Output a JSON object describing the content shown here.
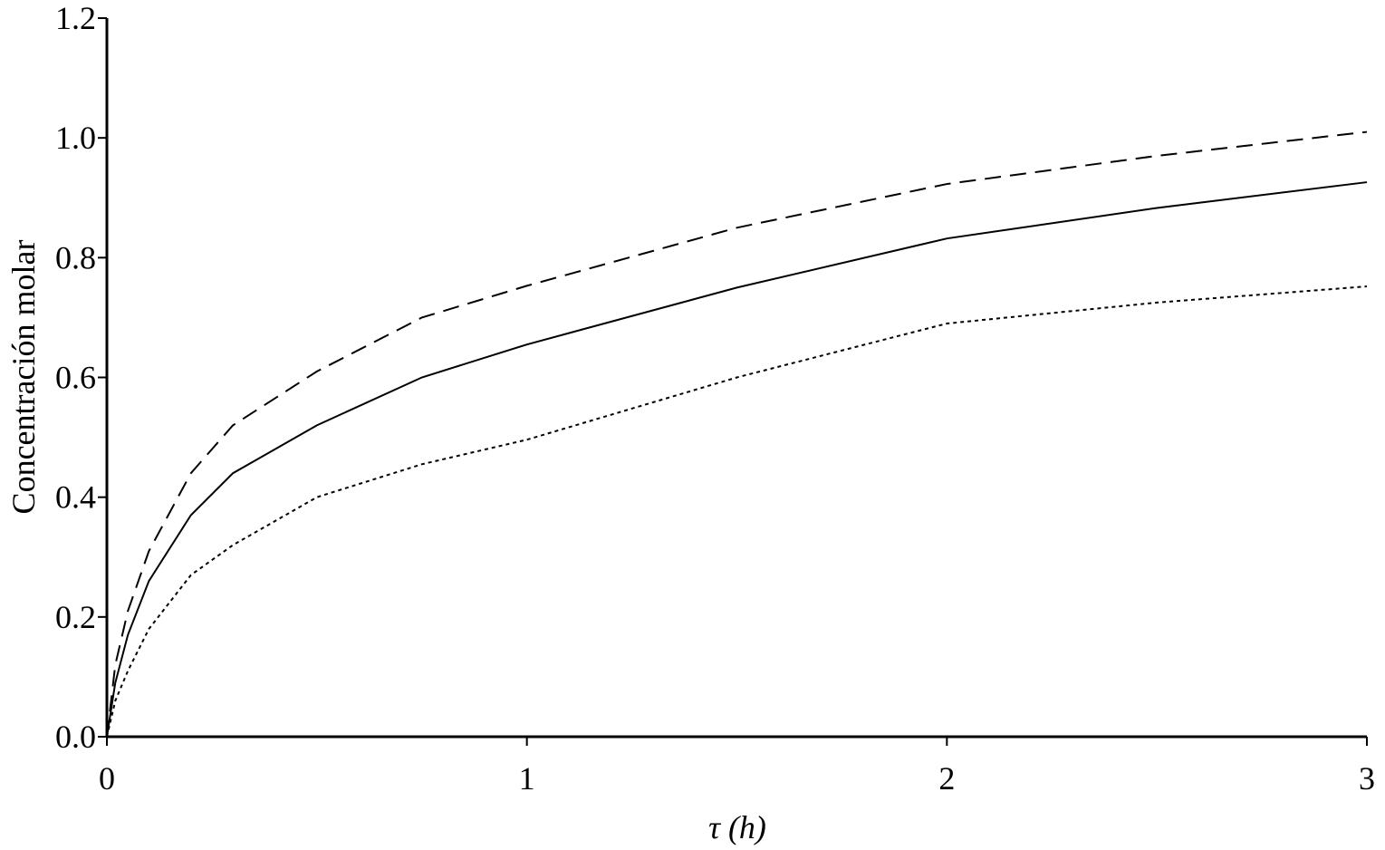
{
  "chart_data": {
    "type": "line",
    "x_label": "τ (h)",
    "y_label": "Concentración molar",
    "x": [
      0,
      0.02,
      0.05,
      0.1,
      0.2,
      0.3,
      0.5,
      0.75,
      1,
      1.5,
      2,
      2.5,
      3
    ],
    "series": [
      {
        "color": "#000000",
        "dash": "solid",
        "values": [
          0,
          0.09,
          0.17,
          0.26,
          0.37,
          0.44,
          0.52,
          0.6,
          0.655,
          0.75,
          0.832,
          0.883,
          0.926
        ]
      },
      {
        "color": "#000000",
        "dash": "dashed",
        "values": [
          0,
          0.12,
          0.21,
          0.31,
          0.44,
          0.52,
          0.61,
          0.7,
          0.753,
          0.85,
          0.923,
          0.97,
          1.01
        ]
      },
      {
        "color": "#000000",
        "dash": "dotted",
        "values": [
          0,
          0.06,
          0.11,
          0.18,
          0.27,
          0.32,
          0.4,
          0.455,
          0.496,
          0.6,
          0.69,
          0.725,
          0.752
        ]
      }
    ],
    "xlim": [
      0,
      3
    ],
    "xticks": [
      0,
      1,
      2,
      3
    ],
    "ylim": [
      0,
      1.2
    ],
    "yticks": [
      {
        "value": 0,
        "label": "0.0"
      },
      0.2,
      0.4,
      0.6,
      0.8,
      {
        "value": 1,
        "label": "1.0"
      },
      1.2
    ],
    "grid": false
  }
}
